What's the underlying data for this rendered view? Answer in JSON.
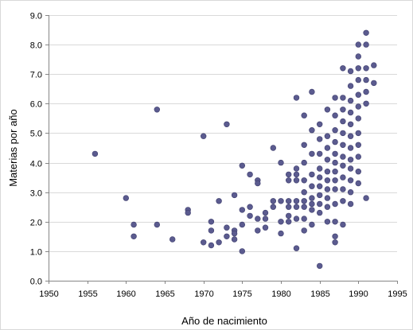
{
  "chart_data": {
    "type": "scatter",
    "title": "",
    "xlabel": "Año de nacimiento",
    "ylabel": "Materias por año",
    "xlim": [
      1950,
      1995
    ],
    "ylim": [
      0,
      9
    ],
    "x_ticks": [
      1950,
      1955,
      1960,
      1965,
      1970,
      1975,
      1980,
      1985,
      1990,
      1995
    ],
    "y_ticks": [
      0,
      1,
      2,
      3,
      4,
      5,
      6,
      7,
      8,
      9
    ],
    "x_tick_labels": [
      "1950",
      "1955",
      "1960",
      "1965",
      "1970",
      "1975",
      "1980",
      "1985",
      "1990",
      "1995"
    ],
    "y_tick_labels": [
      "0.0",
      "1.0",
      "2.0",
      "3.0",
      "4.0",
      "5.0",
      "6.0",
      "7.0",
      "8.0",
      "9.0"
    ],
    "grid": "horizontal",
    "legend": "none",
    "marker_color": "#5b5b8f",
    "series": [
      {
        "points": [
          [
            1956,
            4.3
          ],
          [
            1960,
            2.8
          ],
          [
            1961,
            1.9
          ],
          [
            1961,
            1.5
          ],
          [
            1964,
            5.8
          ],
          [
            1964,
            1.9
          ],
          [
            1966,
            1.4
          ],
          [
            1968,
            2.4
          ],
          [
            1968,
            2.3
          ],
          [
            1970,
            4.9
          ],
          [
            1970,
            1.3
          ],
          [
            1971,
            2.0
          ],
          [
            1971,
            1.7
          ],
          [
            1971,
            1.2
          ],
          [
            1972,
            2.7
          ],
          [
            1972,
            1.3
          ],
          [
            1973,
            5.3
          ],
          [
            1973,
            1.8
          ],
          [
            1973,
            1.5
          ],
          [
            1974,
            2.9
          ],
          [
            1974,
            1.7
          ],
          [
            1974,
            1.6
          ],
          [
            1974,
            1.4
          ],
          [
            1975,
            3.9
          ],
          [
            1975,
            2.4
          ],
          [
            1975,
            1.9
          ],
          [
            1975,
            1.0
          ],
          [
            1976,
            3.6
          ],
          [
            1976,
            2.5
          ],
          [
            1976,
            2.2
          ],
          [
            1977,
            3.4
          ],
          [
            1977,
            3.3
          ],
          [
            1977,
            2.1
          ],
          [
            1977,
            1.7
          ],
          [
            1978,
            2.3
          ],
          [
            1978,
            2.1
          ],
          [
            1978,
            1.8
          ],
          [
            1979,
            4.5
          ],
          [
            1979,
            2.7
          ],
          [
            1979,
            2.5
          ],
          [
            1980,
            4.0
          ],
          [
            1980,
            2.7
          ],
          [
            1980,
            2.0
          ],
          [
            1980,
            1.6
          ],
          [
            1981,
            3.6
          ],
          [
            1981,
            3.4
          ],
          [
            1981,
            2.7
          ],
          [
            1981,
            2.5
          ],
          [
            1981,
            2.2
          ],
          [
            1981,
            2.0
          ],
          [
            1982,
            6.2
          ],
          [
            1982,
            3.8
          ],
          [
            1982,
            3.6
          ],
          [
            1982,
            3.4
          ],
          [
            1982,
            2.7
          ],
          [
            1982,
            2.5
          ],
          [
            1982,
            2.1
          ],
          [
            1982,
            1.1
          ],
          [
            1983,
            5.6
          ],
          [
            1983,
            4.6
          ],
          [
            1983,
            4.0
          ],
          [
            1983,
            3.4
          ],
          [
            1983,
            3.0
          ],
          [
            1983,
            2.7
          ],
          [
            1983,
            2.5
          ],
          [
            1983,
            2.1
          ],
          [
            1983,
            1.7
          ],
          [
            1984,
            6.4
          ],
          [
            1984,
            5.1
          ],
          [
            1984,
            4.3
          ],
          [
            1984,
            3.6
          ],
          [
            1984,
            3.2
          ],
          [
            1984,
            2.8
          ],
          [
            1984,
            2.6
          ],
          [
            1984,
            2.4
          ],
          [
            1984,
            1.9
          ],
          [
            1985,
            5.3
          ],
          [
            1985,
            4.8
          ],
          [
            1985,
            4.3
          ],
          [
            1985,
            3.8
          ],
          [
            1985,
            3.5
          ],
          [
            1985,
            3.2
          ],
          [
            1985,
            2.9
          ],
          [
            1985,
            2.6
          ],
          [
            1985,
            2.3
          ],
          [
            1985,
            0.5
          ],
          [
            1986,
            5.8
          ],
          [
            1986,
            4.9
          ],
          [
            1986,
            4.5
          ],
          [
            1986,
            4.1
          ],
          [
            1986,
            3.7
          ],
          [
            1986,
            3.4
          ],
          [
            1986,
            3.1
          ],
          [
            1986,
            2.8
          ],
          [
            1986,
            2.5
          ],
          [
            1986,
            2.0
          ],
          [
            1987,
            6.2
          ],
          [
            1987,
            5.6
          ],
          [
            1987,
            5.1
          ],
          [
            1987,
            4.7
          ],
          [
            1987,
            4.3
          ],
          [
            1987,
            4.0
          ],
          [
            1987,
            3.7
          ],
          [
            1987,
            3.4
          ],
          [
            1987,
            3.1
          ],
          [
            1987,
            2.6
          ],
          [
            1987,
            2.0
          ],
          [
            1987,
            1.5
          ],
          [
            1987,
            1.3
          ],
          [
            1988,
            7.2
          ],
          [
            1988,
            6.2
          ],
          [
            1988,
            5.8
          ],
          [
            1988,
            5.4
          ],
          [
            1988,
            5.0
          ],
          [
            1988,
            4.6
          ],
          [
            1988,
            4.2
          ],
          [
            1988,
            3.9
          ],
          [
            1988,
            3.5
          ],
          [
            1988,
            3.1
          ],
          [
            1988,
            2.7
          ],
          [
            1988,
            1.9
          ],
          [
            1989,
            7.1
          ],
          [
            1989,
            6.6
          ],
          [
            1989,
            6.1
          ],
          [
            1989,
            5.7
          ],
          [
            1989,
            5.3
          ],
          [
            1989,
            4.9
          ],
          [
            1989,
            4.5
          ],
          [
            1989,
            4.1
          ],
          [
            1989,
            3.8
          ],
          [
            1989,
            3.4
          ],
          [
            1989,
            3.0
          ],
          [
            1989,
            2.6
          ],
          [
            1990,
            8.0
          ],
          [
            1990,
            7.6
          ],
          [
            1990,
            7.2
          ],
          [
            1990,
            6.8
          ],
          [
            1990,
            6.3
          ],
          [
            1990,
            5.9
          ],
          [
            1990,
            5.5
          ],
          [
            1990,
            5.0
          ],
          [
            1990,
            4.6
          ],
          [
            1990,
            4.2
          ],
          [
            1990,
            3.7
          ],
          [
            1990,
            3.3
          ],
          [
            1991,
            8.4
          ],
          [
            1991,
            8.0
          ],
          [
            1991,
            7.2
          ],
          [
            1991,
            6.8
          ],
          [
            1991,
            6.4
          ],
          [
            1991,
            6.0
          ],
          [
            1991,
            2.8
          ],
          [
            1992,
            7.3
          ],
          [
            1992,
            6.7
          ]
        ]
      }
    ]
  }
}
